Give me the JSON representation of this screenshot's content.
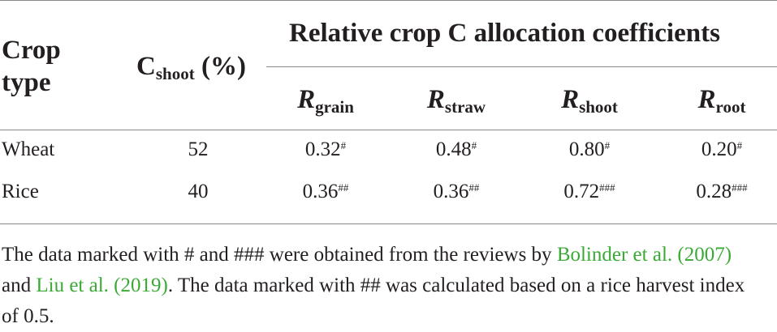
{
  "header": {
    "crop_type_line1": "Crop",
    "crop_type_line2": "type",
    "cshoot_main": "C",
    "cshoot_sub": "shoot",
    "cshoot_unit": " (%)",
    "group_title": "Relative crop C allocation coefficients",
    "columns": [
      {
        "main": "R",
        "sub": "grain"
      },
      {
        "main": "R",
        "sub": "straw"
      },
      {
        "main": "R",
        "sub": "shoot"
      },
      {
        "main": "R",
        "sub": "root"
      }
    ]
  },
  "rows": [
    {
      "crop": "Wheat",
      "cshoot": "52",
      "values": [
        {
          "value": "0.32",
          "mark": "#"
        },
        {
          "value": "0.48",
          "mark": "#"
        },
        {
          "value": "0.80",
          "mark": "#"
        },
        {
          "value": "0.20",
          "mark": "#"
        }
      ]
    },
    {
      "crop": "Rice",
      "cshoot": "40",
      "values": [
        {
          "value": "0.36",
          "mark": "##"
        },
        {
          "value": "0.36",
          "mark": "##"
        },
        {
          "value": "0.72",
          "mark": "###"
        },
        {
          "value": "0.28",
          "mark": "###"
        }
      ]
    }
  ],
  "footnote": {
    "part1": "The data marked with # and ### were obtained from the reviews by ",
    "ref1": "Bolinder et al. (2007)",
    "part2": " and ",
    "ref2": "Liu et al. (2019)",
    "part3": ". The data marked with ## was calculated based on a rice harvest index of 0.5."
  },
  "colors": {
    "text": "#231f20",
    "link": "#3aaa35",
    "rule": "#8a8a8a"
  }
}
